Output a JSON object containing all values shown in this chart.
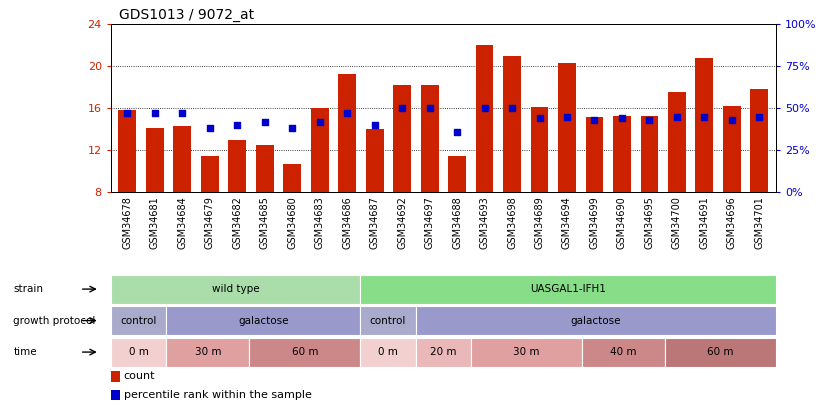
{
  "title": "GDS1013 / 9072_at",
  "samples": [
    "GSM34678",
    "GSM34681",
    "GSM34684",
    "GSM34679",
    "GSM34682",
    "GSM34685",
    "GSM34680",
    "GSM34683",
    "GSM34686",
    "GSM34687",
    "GSM34692",
    "GSM34697",
    "GSM34688",
    "GSM34693",
    "GSM34698",
    "GSM34689",
    "GSM34694",
    "GSM34699",
    "GSM34690",
    "GSM34695",
    "GSM34700",
    "GSM34691",
    "GSM34696",
    "GSM34701"
  ],
  "counts": [
    15.8,
    14.1,
    14.3,
    11.5,
    13.0,
    12.5,
    10.7,
    16.0,
    19.3,
    14.0,
    18.2,
    18.2,
    11.5,
    22.0,
    21.0,
    16.1,
    20.3,
    15.2,
    15.3,
    15.3,
    17.5,
    20.8,
    16.2,
    17.8
  ],
  "percentiles": [
    47,
    47,
    47,
    38,
    40,
    42,
    38,
    42,
    47,
    40,
    50,
    50,
    36,
    50,
    50,
    44,
    45,
    43,
    44,
    43,
    45,
    45,
    43,
    45
  ],
  "ylim_left": [
    8,
    24
  ],
  "ylim_right": [
    0,
    100
  ],
  "yticks_left": [
    8,
    12,
    16,
    20,
    24
  ],
  "yticks_right": [
    0,
    25,
    50,
    75,
    100
  ],
  "bar_color": "#cc2200",
  "dot_color": "#0000cc",
  "background_color": "#ffffff",
  "strain_groups": [
    {
      "label": "wild type",
      "start": 0,
      "end": 9,
      "color": "#aaddaa"
    },
    {
      "label": "UASGAL1-IFH1",
      "start": 9,
      "end": 24,
      "color": "#88dd88"
    }
  ],
  "protocol_groups": [
    {
      "label": "control",
      "start": 0,
      "end": 2,
      "color": "#aaaacc"
    },
    {
      "label": "galactose",
      "start": 2,
      "end": 9,
      "color": "#9999cc"
    },
    {
      "label": "control",
      "start": 9,
      "end": 11,
      "color": "#aaaacc"
    },
    {
      "label": "galactose",
      "start": 11,
      "end": 24,
      "color": "#9999cc"
    }
  ],
  "time_groups": [
    {
      "label": "0 m",
      "start": 0,
      "end": 2,
      "color": "#f2d0d0"
    },
    {
      "label": "30 m",
      "start": 2,
      "end": 5,
      "color": "#e0a0a0"
    },
    {
      "label": "60 m",
      "start": 5,
      "end": 9,
      "color": "#cc8888"
    },
    {
      "label": "0 m",
      "start": 9,
      "end": 11,
      "color": "#f2d0d0"
    },
    {
      "label": "20 m",
      "start": 11,
      "end": 13,
      "color": "#eab8b8"
    },
    {
      "label": "30 m",
      "start": 13,
      "end": 17,
      "color": "#e0a0a0"
    },
    {
      "label": "40 m",
      "start": 17,
      "end": 20,
      "color": "#cc8888"
    },
    {
      "label": "60 m",
      "start": 20,
      "end": 24,
      "color": "#bb7777"
    }
  ],
  "row_labels": [
    "strain",
    "growth protocol",
    "time"
  ],
  "row_keys": [
    "strain_groups",
    "protocol_groups",
    "time_groups"
  ],
  "xtick_bg": "#dddddd",
  "label_col_bg": "#cccccc",
  "legend_items": [
    {
      "label": "count",
      "color": "#cc2200"
    },
    {
      "label": "percentile rank within the sample",
      "color": "#0000cc"
    }
  ]
}
